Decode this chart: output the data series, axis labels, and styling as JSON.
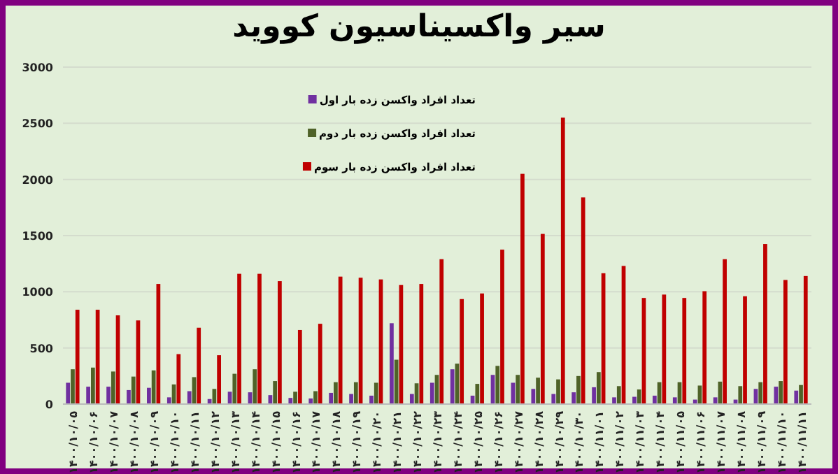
{
  "chart_data": {
    "type": "bar",
    "title": "سیر واکسیناسیون کووید",
    "categories": [
      "۱۴۰۰/۱۰/۰۵",
      "۱۴۰۰/۱۰/۰۶",
      "۱۴۰۰/۱۰/۰۷",
      "۱۴۰۰/۱۰/۰۸",
      "۱۴۰۰/۱۰/۰۹",
      "۱۴۰۰/۱۰/۱۰",
      "۱۴۰۰/۱۰/۱۱",
      "۱۴۰۰/۱۰/۱۲",
      "۱۴۰۰/۱۰/۱۳",
      "۱۴۰۰/۱۰/۱۴",
      "۱۴۰۰/۱۰/۱۵",
      "۱۴۰۰/۱۰/۱۶",
      "۱۴۰۰/۱۰/۱۷",
      "۱۴۰۰/۱۰/۱۸",
      "۱۴۰۰/۱۰/۱۹",
      "۱۴۰۰/۱۰/۲۰",
      "۱۴۰۰/۱۰/۲۱",
      "۱۴۰۰/۱۰/۲۲",
      "۱۴۰۰/۱۰/۲۳",
      "۱۴۰۰/۱۰/۲۴",
      "۱۴۰۰/۱۰/۲۵",
      "۱۴۰۰/۱۰/۲۶",
      "۱۴۰۰/۱۰/۲۷",
      "۱۴۰۰/۱۰/۲۸",
      "۱۴۰۰/۱۰/۲۹",
      "۱۴۰۰/۱۰/۳۰",
      "۱۴۰۰/۱۱/۰۱",
      "۱۴۰۰/۱۱/۰۲",
      "۱۴۰۰/۱۱/۰۳",
      "۱۴۰۰/۱۱/۰۴",
      "۱۴۰۰/۱۱/۰۵",
      "۱۴۰۰/۱۱/۰۶",
      "۱۴۰۰/۱۱/۰۷",
      "۱۴۰۰/۱۱/۰۸",
      "۱۴۰۰/۱۱/۰۹",
      "۱۴۰۰/۱۱/۱۰",
      "۱۴۰۰/۱۱/۱۱"
    ],
    "series": [
      {
        "name": "تعداد افراد واکسن زده بار اول",
        "color": "#7030a0",
        "values": [
          190,
          155,
          155,
          125,
          145,
          60,
          115,
          45,
          110,
          105,
          80,
          55,
          50,
          100,
          90,
          75,
          720,
          90,
          190,
          310,
          75,
          260,
          190,
          135,
          90,
          105,
          150,
          60,
          65,
          75,
          60,
          40,
          60,
          40,
          135,
          155,
          120
        ]
      },
      {
        "name": "تعداد افراد واکسن زده بار دوم",
        "color": "#4f6228",
        "values": [
          310,
          325,
          290,
          245,
          300,
          175,
          240,
          135,
          270,
          310,
          205,
          110,
          115,
          195,
          195,
          190,
          395,
          185,
          260,
          360,
          180,
          340,
          260,
          235,
          220,
          250,
          285,
          160,
          130,
          195,
          195,
          165,
          200,
          160,
          195,
          205,
          170
        ]
      },
      {
        "name": "تعداد افراد واکسن زده بار سوم",
        "color": "#c00000",
        "values": [
          840,
          840,
          790,
          745,
          1070,
          445,
          680,
          435,
          1160,
          1160,
          1095,
          660,
          715,
          1135,
          1125,
          1110,
          1060,
          1070,
          1290,
          935,
          985,
          1375,
          2050,
          1515,
          2550,
          1840,
          1165,
          1230,
          945,
          975,
          945,
          1005,
          1290,
          960,
          1425,
          1105,
          1140
        ]
      }
    ],
    "ylim": [
      0,
      3000
    ],
    "yticks": [
      0,
      500,
      1000,
      1500,
      2000,
      2500,
      3000
    ],
    "grid": "y",
    "legend": "top"
  }
}
